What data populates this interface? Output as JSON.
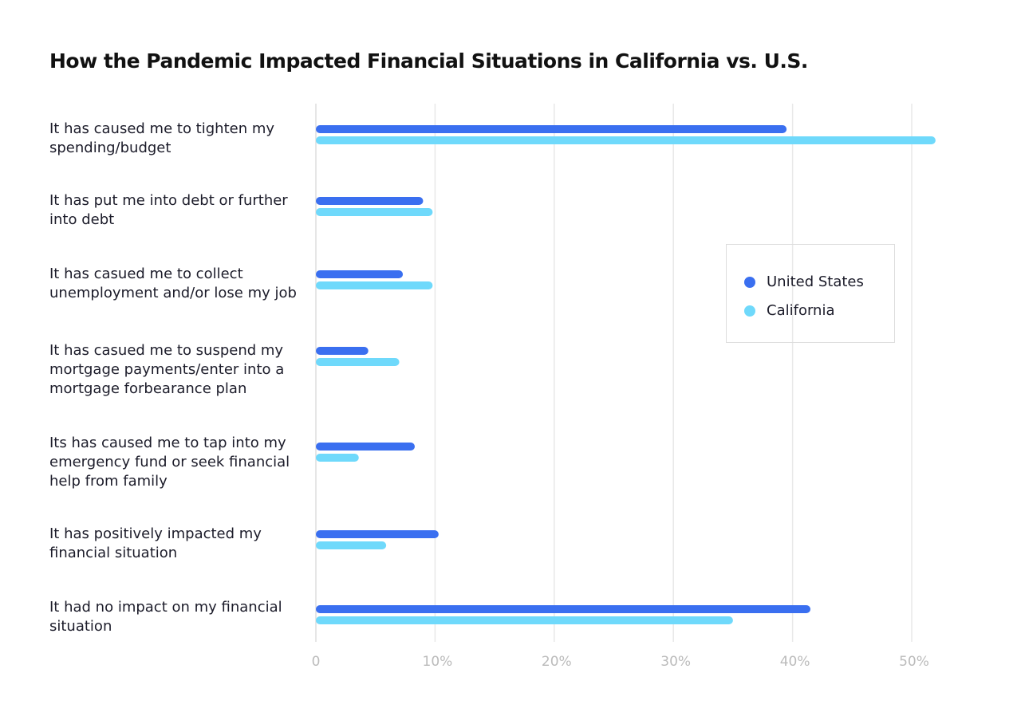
{
  "chart_data": {
    "type": "bar",
    "orientation": "horizontal",
    "title": "How the Pandemic Impacted Financial Situations in California vs. U.S.",
    "categories": [
      "It has caused me to tighten my spending/budget",
      "It has put me into debt or further into debt",
      "It has casued me to collect unemployment and/or lose my job",
      "It has casued me to suspend my mortgage payments/enter into a mortgage forbearance plan",
      "Its has caused me to tap into my emergency fund or seek financial help from family",
      "It has positively impacted my financial situation",
      "It had no impact on my financial situation"
    ],
    "series": [
      {
        "name": "United States",
        "color": "#3a6ff0",
        "values": [
          39.5,
          9.0,
          7.3,
          4.4,
          8.3,
          10.3,
          41.5
        ]
      },
      {
        "name": "California",
        "color": "#6fd9fb",
        "values": [
          52.0,
          9.8,
          9.8,
          7.0,
          3.6,
          5.9,
          35.0
        ]
      }
    ],
    "xlim": [
      0,
      50
    ],
    "xticks": [
      "0",
      "10%",
      "20%",
      "30%",
      "40%",
      "50%"
    ],
    "grid": true,
    "legend_position": "right"
  }
}
